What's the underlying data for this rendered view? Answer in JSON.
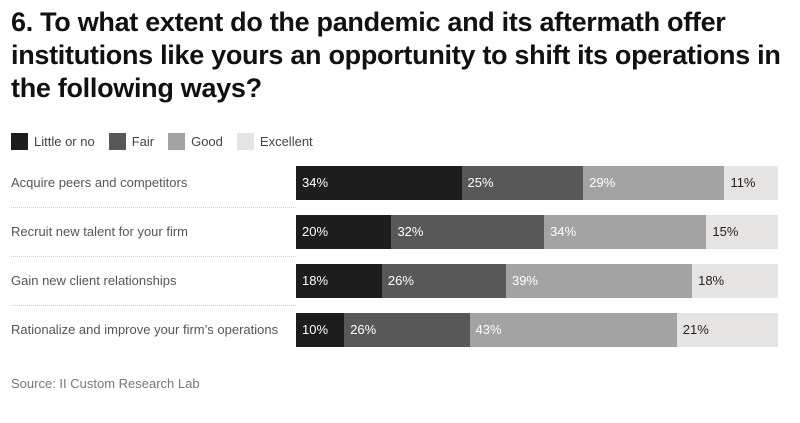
{
  "title": "6. To what extent do the pandemic and its aftermath offer institutions like yours an opportunity to shift its operations in the following ways?",
  "source": "Source: II Custom Research Lab",
  "colors": {
    "little": "#1d1d1d",
    "fair": "#585858",
    "good": "#a3a3a3",
    "excellent": "#e6e4e3"
  },
  "chart_data": {
    "type": "bar",
    "orientation": "horizontal",
    "stacked": true,
    "categories": [
      "Acquire peers and competitors",
      "Recruit new talent for your firm",
      "Gain new client relationships",
      "Rationalize and improve your firm’s operations"
    ],
    "series": [
      {
        "name": "Little or no",
        "values": [
          34,
          20,
          18,
          10
        ],
        "labels": [
          "34%",
          "20%",
          "18%",
          "10%"
        ]
      },
      {
        "name": "Fair",
        "values": [
          25,
          32,
          26,
          26
        ],
        "labels": [
          "25%",
          "32%",
          "26%",
          "26%"
        ]
      },
      {
        "name": "Good",
        "values": [
          29,
          34,
          39,
          43
        ],
        "labels": [
          "29%",
          "34%",
          "39%",
          "43%"
        ]
      },
      {
        "name": "Excellent",
        "values": [
          11,
          15,
          18,
          21
        ],
        "labels": [
          "11%",
          "15%",
          "18%",
          "21%"
        ]
      }
    ],
    "legend_position": "top-left",
    "grid": false
  }
}
